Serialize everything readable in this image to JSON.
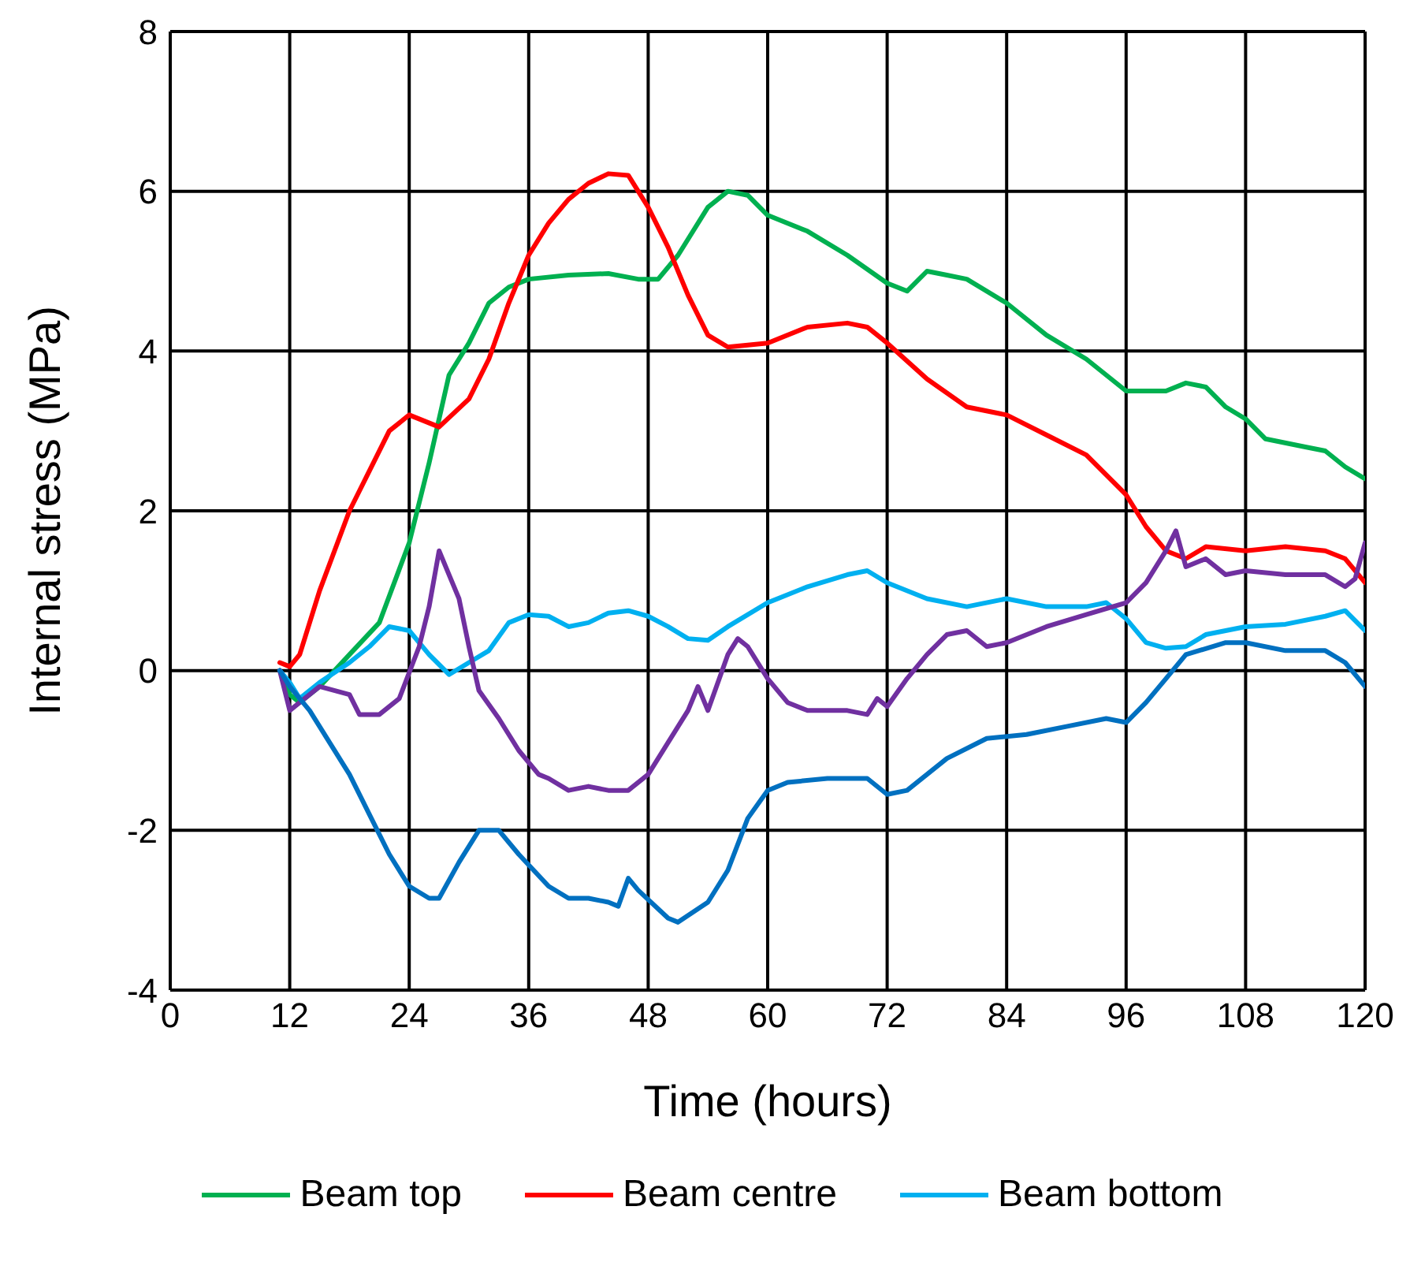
{
  "chart_data": {
    "type": "line",
    "xlabel": "Time (hours)",
    "ylabel": "Internal stress (MPa)",
    "xlim": [
      0,
      120
    ],
    "xticks": [
      0,
      12,
      24,
      36,
      48,
      60,
      72,
      84,
      96,
      108,
      120
    ],
    "ylim": [
      -4,
      8
    ],
    "yticks": [
      -4,
      -2,
      0,
      2,
      4,
      6,
      8
    ],
    "grid": true,
    "legend": "bottom",
    "line_style": "solid",
    "series": [
      {
        "name": "Beam top",
        "color": "#00b050",
        "x": [
          11,
          12,
          13,
          15,
          18,
          21,
          24,
          26,
          28,
          30,
          32,
          34,
          36,
          40,
          44,
          47,
          49,
          51,
          54,
          56,
          58,
          60,
          64,
          68,
          72,
          74,
          76,
          78,
          80,
          84,
          88,
          92,
          96,
          98,
          100,
          102,
          104,
          106,
          108,
          110,
          114,
          116,
          118,
          120
        ],
        "values": [
          0,
          -0.3,
          -0.4,
          -0.2,
          0.2,
          0.6,
          1.6,
          2.6,
          3.7,
          4.1,
          4.6,
          4.8,
          4.9,
          4.95,
          4.97,
          4.9,
          4.9,
          5.2,
          5.8,
          6.0,
          5.95,
          5.7,
          5.5,
          5.2,
          4.85,
          4.75,
          5.0,
          4.95,
          4.9,
          4.6,
          4.2,
          3.9,
          3.5,
          3.5,
          3.5,
          3.6,
          3.55,
          3.3,
          3.15,
          2.9,
          2.8,
          2.75,
          2.55,
          2.4
        ]
      },
      {
        "name": "Beam centre",
        "color": "#ff0000",
        "x": [
          11,
          12,
          13,
          15,
          18,
          20,
          22,
          24,
          27,
          30,
          32,
          34,
          36,
          38,
          40,
          42,
          44,
          46,
          48,
          50,
          52,
          54,
          56,
          60,
          64,
          68,
          70,
          72,
          76,
          80,
          84,
          88,
          92,
          96,
          98,
          100,
          102,
          104,
          108,
          112,
          116,
          118,
          120
        ],
        "values": [
          0.1,
          0.05,
          0.2,
          1.0,
          2.0,
          2.5,
          3.0,
          3.2,
          3.05,
          3.4,
          3.9,
          4.6,
          5.2,
          5.6,
          5.9,
          6.1,
          6.22,
          6.2,
          5.8,
          5.3,
          4.7,
          4.2,
          4.05,
          4.1,
          4.3,
          4.35,
          4.3,
          4.1,
          3.65,
          3.3,
          3.2,
          2.95,
          2.7,
          2.2,
          1.8,
          1.5,
          1.4,
          1.55,
          1.5,
          1.55,
          1.5,
          1.4,
          1.1
        ]
      },
      {
        "name": "Beam bottom",
        "color": "#00b0f0",
        "x": [
          11,
          12,
          13,
          15,
          18,
          20,
          22,
          24,
          26,
          28,
          30,
          32,
          34,
          36,
          38,
          40,
          42,
          44,
          46,
          48,
          50,
          52,
          54,
          56,
          60,
          64,
          68,
          70,
          72,
          76,
          80,
          84,
          88,
          92,
          94,
          96,
          98,
          100,
          102,
          104,
          108,
          112,
          116,
          118,
          120
        ],
        "values": [
          0,
          -0.15,
          -0.35,
          -0.15,
          0.1,
          0.3,
          0.55,
          0.5,
          0.2,
          -0.05,
          0.1,
          0.25,
          0.6,
          0.7,
          0.68,
          0.55,
          0.6,
          0.72,
          0.75,
          0.68,
          0.55,
          0.4,
          0.38,
          0.55,
          0.85,
          1.05,
          1.2,
          1.25,
          1.1,
          0.9,
          0.8,
          0.9,
          0.8,
          0.8,
          0.85,
          0.65,
          0.35,
          0.28,
          0.3,
          0.45,
          0.55,
          0.58,
          0.68,
          0.75,
          0.5
        ]
      },
      {
        "color": "#7030a0",
        "x": [
          11,
          12,
          13,
          15,
          18,
          19,
          21,
          23,
          25,
          26,
          27,
          28,
          29,
          30,
          31,
          33,
          35,
          37,
          38,
          40,
          42,
          44,
          46,
          48,
          50,
          52,
          53,
          54,
          56,
          57,
          58,
          60,
          62,
          64,
          68,
          70,
          71,
          72,
          74,
          76,
          78,
          80,
          82,
          84,
          88,
          92,
          96,
          98,
          100,
          101,
          102,
          104,
          106,
          108,
          112,
          116,
          118,
          119,
          120
        ],
        "values": [
          0,
          -0.5,
          -0.4,
          -0.2,
          -0.3,
          -0.55,
          -0.55,
          -0.35,
          0.3,
          0.8,
          1.5,
          1.2,
          0.9,
          0.3,
          -0.25,
          -0.6,
          -1.0,
          -1.3,
          -1.35,
          -1.5,
          -1.45,
          -1.5,
          -1.5,
          -1.3,
          -0.9,
          -0.5,
          -0.2,
          -0.5,
          0.2,
          0.4,
          0.3,
          -0.1,
          -0.4,
          -0.5,
          -0.5,
          -0.55,
          -0.35,
          -0.45,
          -0.1,
          0.2,
          0.45,
          0.5,
          0.3,
          0.35,
          0.55,
          0.7,
          0.85,
          1.1,
          1.5,
          1.75,
          1.3,
          1.4,
          1.2,
          1.25,
          1.2,
          1.2,
          1.05,
          1.15,
          1.6
        ]
      },
      {
        "color": "#0070c0",
        "x": [
          11,
          12,
          14,
          16,
          18,
          20,
          22,
          24,
          26,
          27,
          29,
          31,
          33,
          35,
          38,
          40,
          42,
          44,
          45,
          46,
          47,
          50,
          51,
          54,
          56,
          58,
          60,
          62,
          66,
          70,
          72,
          74,
          78,
          82,
          86,
          90,
          94,
          96,
          98,
          100,
          102,
          106,
          108,
          112,
          116,
          118,
          120
        ],
        "values": [
          0,
          -0.2,
          -0.5,
          -0.9,
          -1.3,
          -1.8,
          -2.3,
          -2.7,
          -2.85,
          -2.85,
          -2.4,
          -2.0,
          -2.0,
          -2.3,
          -2.7,
          -2.85,
          -2.85,
          -2.9,
          -2.95,
          -2.6,
          -2.75,
          -3.1,
          -3.15,
          -2.9,
          -2.5,
          -1.85,
          -1.5,
          -1.4,
          -1.35,
          -1.35,
          -1.55,
          -1.5,
          -1.1,
          -0.85,
          -0.8,
          -0.7,
          -0.6,
          -0.65,
          -0.4,
          -0.1,
          0.2,
          0.35,
          0.35,
          0.25,
          0.25,
          0.1,
          -0.2
        ]
      }
    ]
  }
}
